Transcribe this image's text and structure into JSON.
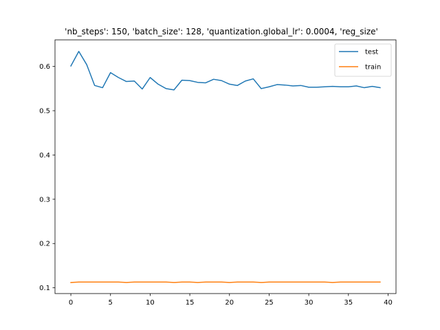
{
  "chart_data": {
    "type": "line",
    "title": "'nb_steps': 150, 'batch_size': 128, 'quantization.global_lr': 0.0004, 'reg_size'",
    "xlabel": "",
    "ylabel": "",
    "xlim": [
      -2.0,
      41.0
    ],
    "ylim": [
      0.087,
      0.66
    ],
    "xticks": [
      0,
      5,
      10,
      15,
      20,
      25,
      30,
      35,
      40
    ],
    "yticks": [
      0.1,
      0.2,
      0.3,
      0.4,
      0.5,
      0.6
    ],
    "ytick_labels": [
      "0.1",
      "0.2",
      "0.3",
      "0.4",
      "0.5",
      "0.6"
    ],
    "grid": false,
    "legend_position": "top-right",
    "x": [
      0,
      1,
      2,
      3,
      4,
      5,
      6,
      7,
      8,
      9,
      10,
      11,
      12,
      13,
      14,
      15,
      16,
      17,
      18,
      19,
      20,
      21,
      22,
      23,
      24,
      25,
      26,
      27,
      28,
      29,
      30,
      31,
      32,
      33,
      34,
      35,
      36,
      37,
      38,
      39
    ],
    "series": [
      {
        "name": "test",
        "color": "#1f77b4",
        "values": [
          0.601,
          0.634,
          0.604,
          0.557,
          0.552,
          0.586,
          0.575,
          0.566,
          0.567,
          0.549,
          0.575,
          0.56,
          0.55,
          0.547,
          0.569,
          0.568,
          0.564,
          0.563,
          0.571,
          0.568,
          0.56,
          0.557,
          0.567,
          0.572,
          0.55,
          0.554,
          0.559,
          0.558,
          0.556,
          0.557,
          0.553,
          0.553,
          0.554,
          0.555,
          0.554,
          0.554,
          0.556,
          0.552,
          0.555,
          0.552
        ]
      },
      {
        "name": "train",
        "color": "#ff7f0e",
        "values": [
          0.112,
          0.113,
          0.113,
          0.113,
          0.113,
          0.113,
          0.113,
          0.112,
          0.113,
          0.113,
          0.113,
          0.113,
          0.113,
          0.112,
          0.113,
          0.113,
          0.112,
          0.113,
          0.113,
          0.113,
          0.112,
          0.113,
          0.113,
          0.113,
          0.112,
          0.113,
          0.113,
          0.113,
          0.113,
          0.113,
          0.113,
          0.113,
          0.113,
          0.112,
          0.113,
          0.113,
          0.113,
          0.113,
          0.113,
          0.113
        ]
      }
    ]
  }
}
